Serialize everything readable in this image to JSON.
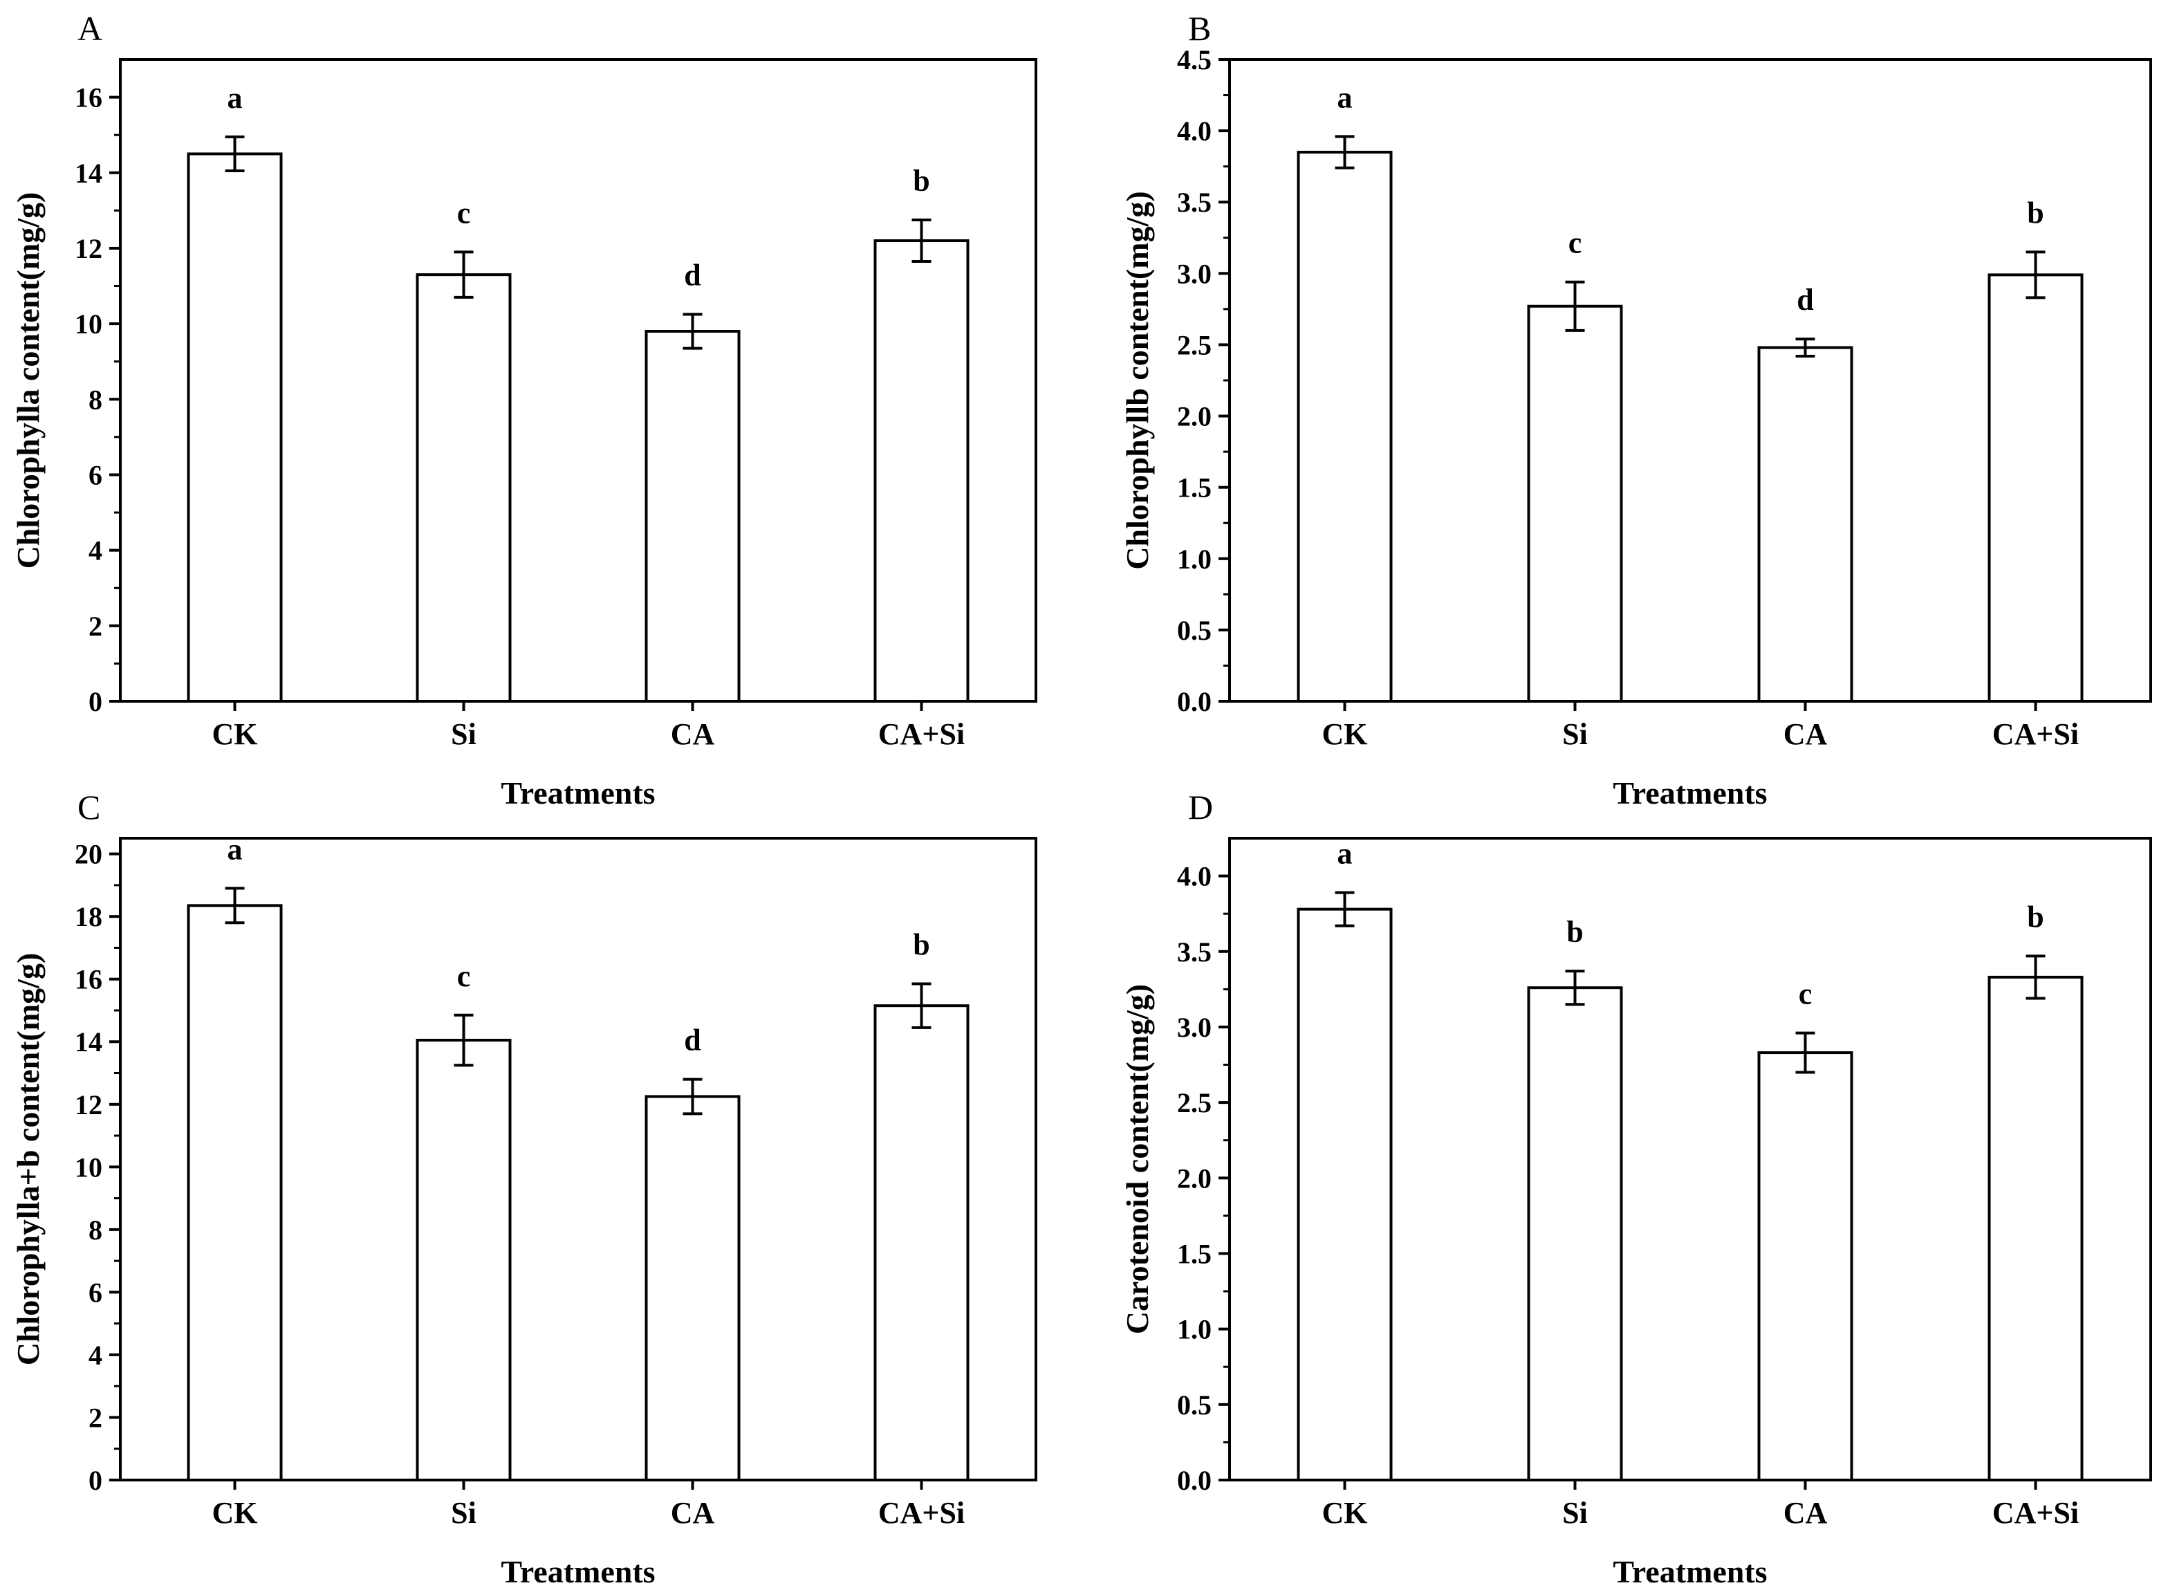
{
  "chart_data": [
    {
      "panel": "A",
      "type": "bar",
      "categories": [
        "CK",
        "Si",
        "CA",
        "CA+Si"
      ],
      "values": [
        14.5,
        11.3,
        9.8,
        12.2
      ],
      "errors": [
        0.45,
        0.6,
        0.45,
        0.55
      ],
      "significance": [
        "a",
        "c",
        "d",
        "b"
      ],
      "xlabel": "Treatments",
      "ylabel": "Chlorophylla content(mg/g)",
      "ylim": [
        0,
        17
      ],
      "yticks": [
        "0",
        "2",
        "4",
        "6",
        "8",
        "10",
        "12",
        "14",
        "16"
      ]
    },
    {
      "panel": "B",
      "type": "bar",
      "categories": [
        "CK",
        "Si",
        "CA",
        "CA+Si"
      ],
      "values": [
        3.85,
        2.77,
        2.48,
        2.99
      ],
      "errors": [
        0.11,
        0.17,
        0.06,
        0.16
      ],
      "significance": [
        "a",
        "c",
        "d",
        "b"
      ],
      "xlabel": "Treatments",
      "ylabel": "Chlorophyllb content(mg/g)",
      "ylim": [
        0,
        4.5
      ],
      "yticks": [
        "0.0",
        "0.5",
        "1.0",
        "1.5",
        "2.0",
        "2.5",
        "3.0",
        "3.5",
        "4.0",
        "4.5"
      ]
    },
    {
      "panel": "C",
      "type": "bar",
      "categories": [
        "CK",
        "Si",
        "CA",
        "CA+Si"
      ],
      "values": [
        18.35,
        14.05,
        12.25,
        15.15
      ],
      "errors": [
        0.55,
        0.8,
        0.55,
        0.7
      ],
      "significance": [
        "a",
        "c",
        "d",
        "b"
      ],
      "xlabel": "Treatments",
      "ylabel": "Chlorophylla+b content(mg/g)",
      "ylim": [
        0,
        20.5
      ],
      "yticks": [
        "0",
        "2",
        "4",
        "6",
        "8",
        "10",
        "12",
        "14",
        "16",
        "18",
        "20"
      ]
    },
    {
      "panel": "D",
      "type": "bar",
      "categories": [
        "CK",
        "Si",
        "CA",
        "CA+Si"
      ],
      "values": [
        3.78,
        3.26,
        2.83,
        3.33
      ],
      "errors": [
        0.11,
        0.11,
        0.13,
        0.14
      ],
      "significance": [
        "a",
        "b",
        "c",
        "b"
      ],
      "xlabel": "Treatments",
      "ylabel": "Carotenoid content(mg/g)",
      "ylim": [
        0,
        4.25
      ],
      "yticks": [
        "0.0",
        "0.5",
        "1.0",
        "1.5",
        "2.0",
        "2.5",
        "3.0",
        "3.5",
        "4.0"
      ]
    }
  ]
}
